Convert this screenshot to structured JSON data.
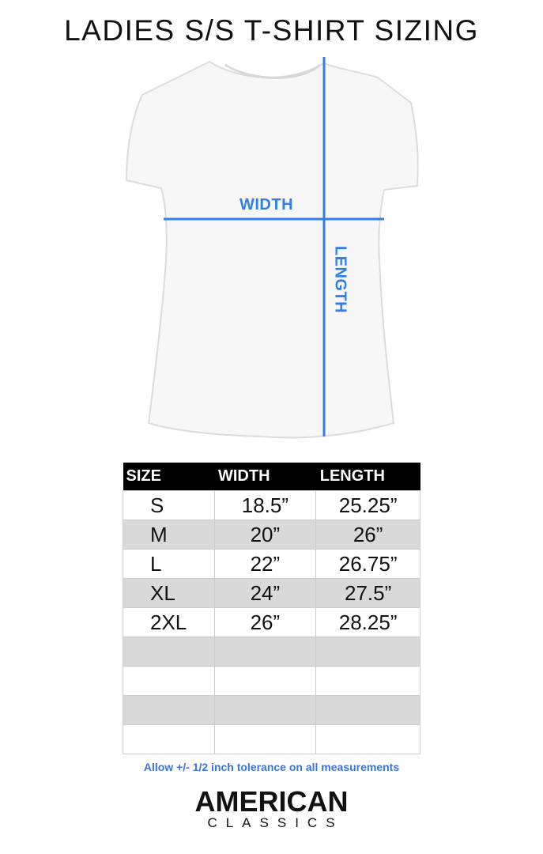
{
  "title": "LADIES S/S T-SHIRT SIZING",
  "diagram": {
    "width_label": "WIDTH",
    "length_label": "LENGTH",
    "line_color": "#2f7fe6"
  },
  "table": {
    "headers": [
      "SIZE",
      "WIDTH",
      "LENGTH"
    ],
    "rows": [
      [
        "S",
        "18.5”",
        "25.25”"
      ],
      [
        "M",
        "20”",
        "26”"
      ],
      [
        "L",
        "22”",
        "26.75”"
      ],
      [
        "XL",
        "24”",
        "27.5”"
      ],
      [
        "2XL",
        "26”",
        "28.25”"
      ],
      [
        "",
        "",
        ""
      ],
      [
        "",
        "",
        ""
      ],
      [
        "",
        "",
        ""
      ],
      [
        "",
        "",
        ""
      ]
    ]
  },
  "note": "Allow +/- 1/2 inch tolerance on all measurements",
  "logo": {
    "main": "AMERICAN",
    "sub": "CLASSICS"
  }
}
